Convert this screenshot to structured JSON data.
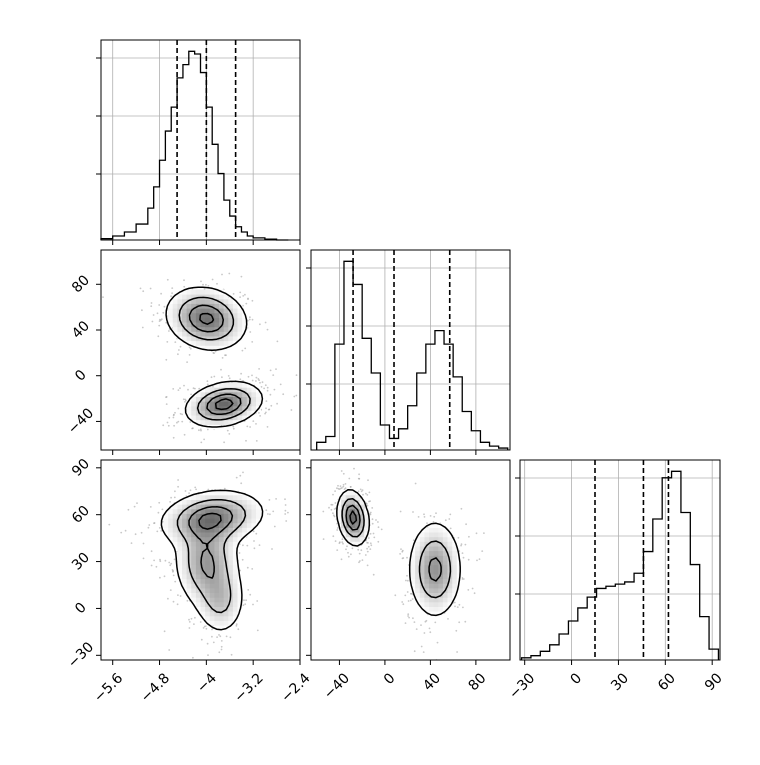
{
  "chart_data": {
    "type": "corner",
    "grid": true,
    "parameters": [
      {
        "id": "p0",
        "range": [
          -5.8,
          -2.4
        ],
        "ticks": [
          -5.6,
          -4.8,
          -4.0,
          -3.2,
          -2.4
        ]
      },
      {
        "id": "p1",
        "range": [
          -65,
          110
        ],
        "ticks": [
          -40,
          0,
          40,
          80
        ]
      },
      {
        "id": "p2",
        "range": [
          -33,
          95
        ],
        "ticks": [
          -30,
          0,
          30,
          60,
          90
        ]
      }
    ],
    "histograms": [
      {
        "param": "p0",
        "bin_edges": [
          -5.8,
          -5.6,
          -5.4,
          -5.2,
          -5.0,
          -4.9,
          -4.8,
          -4.7,
          -4.6,
          -4.5,
          -4.4,
          -4.3,
          -4.2,
          -4.1,
          -4.0,
          -3.9,
          -3.8,
          -3.7,
          -3.6,
          -3.5,
          -3.4,
          -3.3,
          -3.2,
          -3.0,
          -2.8,
          -2.6
        ],
        "counts": [
          0.5,
          1.5,
          3,
          6,
          12,
          20,
          30,
          41,
          50,
          61,
          66,
          71,
          70,
          63,
          50,
          36,
          25,
          15,
          9,
          5,
          3,
          1.5,
          0.8,
          0.3,
          0
        ],
        "quantiles": [
          -4.5,
          -4.0,
          -3.5
        ]
      },
      {
        "param": "p1",
        "bin_edges": [
          -60,
          -52,
          -44,
          -36,
          -28,
          -20,
          -12,
          -4,
          4,
          12,
          20,
          28,
          36,
          44,
          52,
          60,
          68,
          76,
          84,
          92,
          100,
          108
        ],
        "counts": [
          4,
          7,
          55,
          98,
          86,
          58,
          40,
          13,
          6,
          11,
          23,
          40,
          55,
          62,
          55,
          38,
          20,
          10,
          4,
          2,
          1
        ],
        "quantiles": [
          -28,
          8,
          57
        ]
      },
      {
        "param": "p2",
        "bin_edges": [
          -32,
          -26,
          -20,
          -14,
          -8,
          -2,
          4,
          10,
          16,
          22,
          28,
          34,
          40,
          46,
          52,
          58,
          64,
          70,
          76,
          82,
          88,
          94
        ],
        "counts": [
          1,
          2,
          4,
          7,
          12,
          18,
          24,
          29,
          33,
          34,
          35,
          36,
          40,
          50,
          65,
          84,
          87,
          68,
          44,
          20,
          5
        ],
        "quantiles": [
          15,
          46,
          62
        ]
      }
    ],
    "panels_2d": [
      {
        "x": "p0",
        "y": "p1",
        "modes": [
          {
            "cx": -4.0,
            "cy": 50,
            "sx": 0.35,
            "sy": 14,
            "rho": -0.15,
            "w": 1.0
          },
          {
            "cx": -3.7,
            "cy": -25,
            "sx": 0.33,
            "sy": 10,
            "rho": 0.25,
            "w": 1.05
          }
        ]
      },
      {
        "x": "p0",
        "y": "p2",
        "modes": [
          {
            "cx": -3.9,
            "cy": 58,
            "sx": 0.45,
            "sy": 9,
            "rho": 0.2,
            "w": 1.0
          },
          {
            "cx": -4.0,
            "cy": 30,
            "sx": 0.28,
            "sy": 15,
            "rho": 0.0,
            "w": 0.8
          },
          {
            "cx": -3.75,
            "cy": 5,
            "sx": 0.22,
            "sy": 12,
            "rho": 0.0,
            "w": 0.5
          }
        ]
      },
      {
        "x": "p1",
        "y": "p2",
        "modes": [
          {
            "cx": -28,
            "cy": 58,
            "sx": 7,
            "sy": 9,
            "rho": -0.2,
            "w": 1.0
          },
          {
            "cx": 44,
            "cy": 25,
            "sx": 12,
            "sy": 16,
            "rho": 0.0,
            "w": 0.75
          }
        ]
      }
    ]
  }
}
